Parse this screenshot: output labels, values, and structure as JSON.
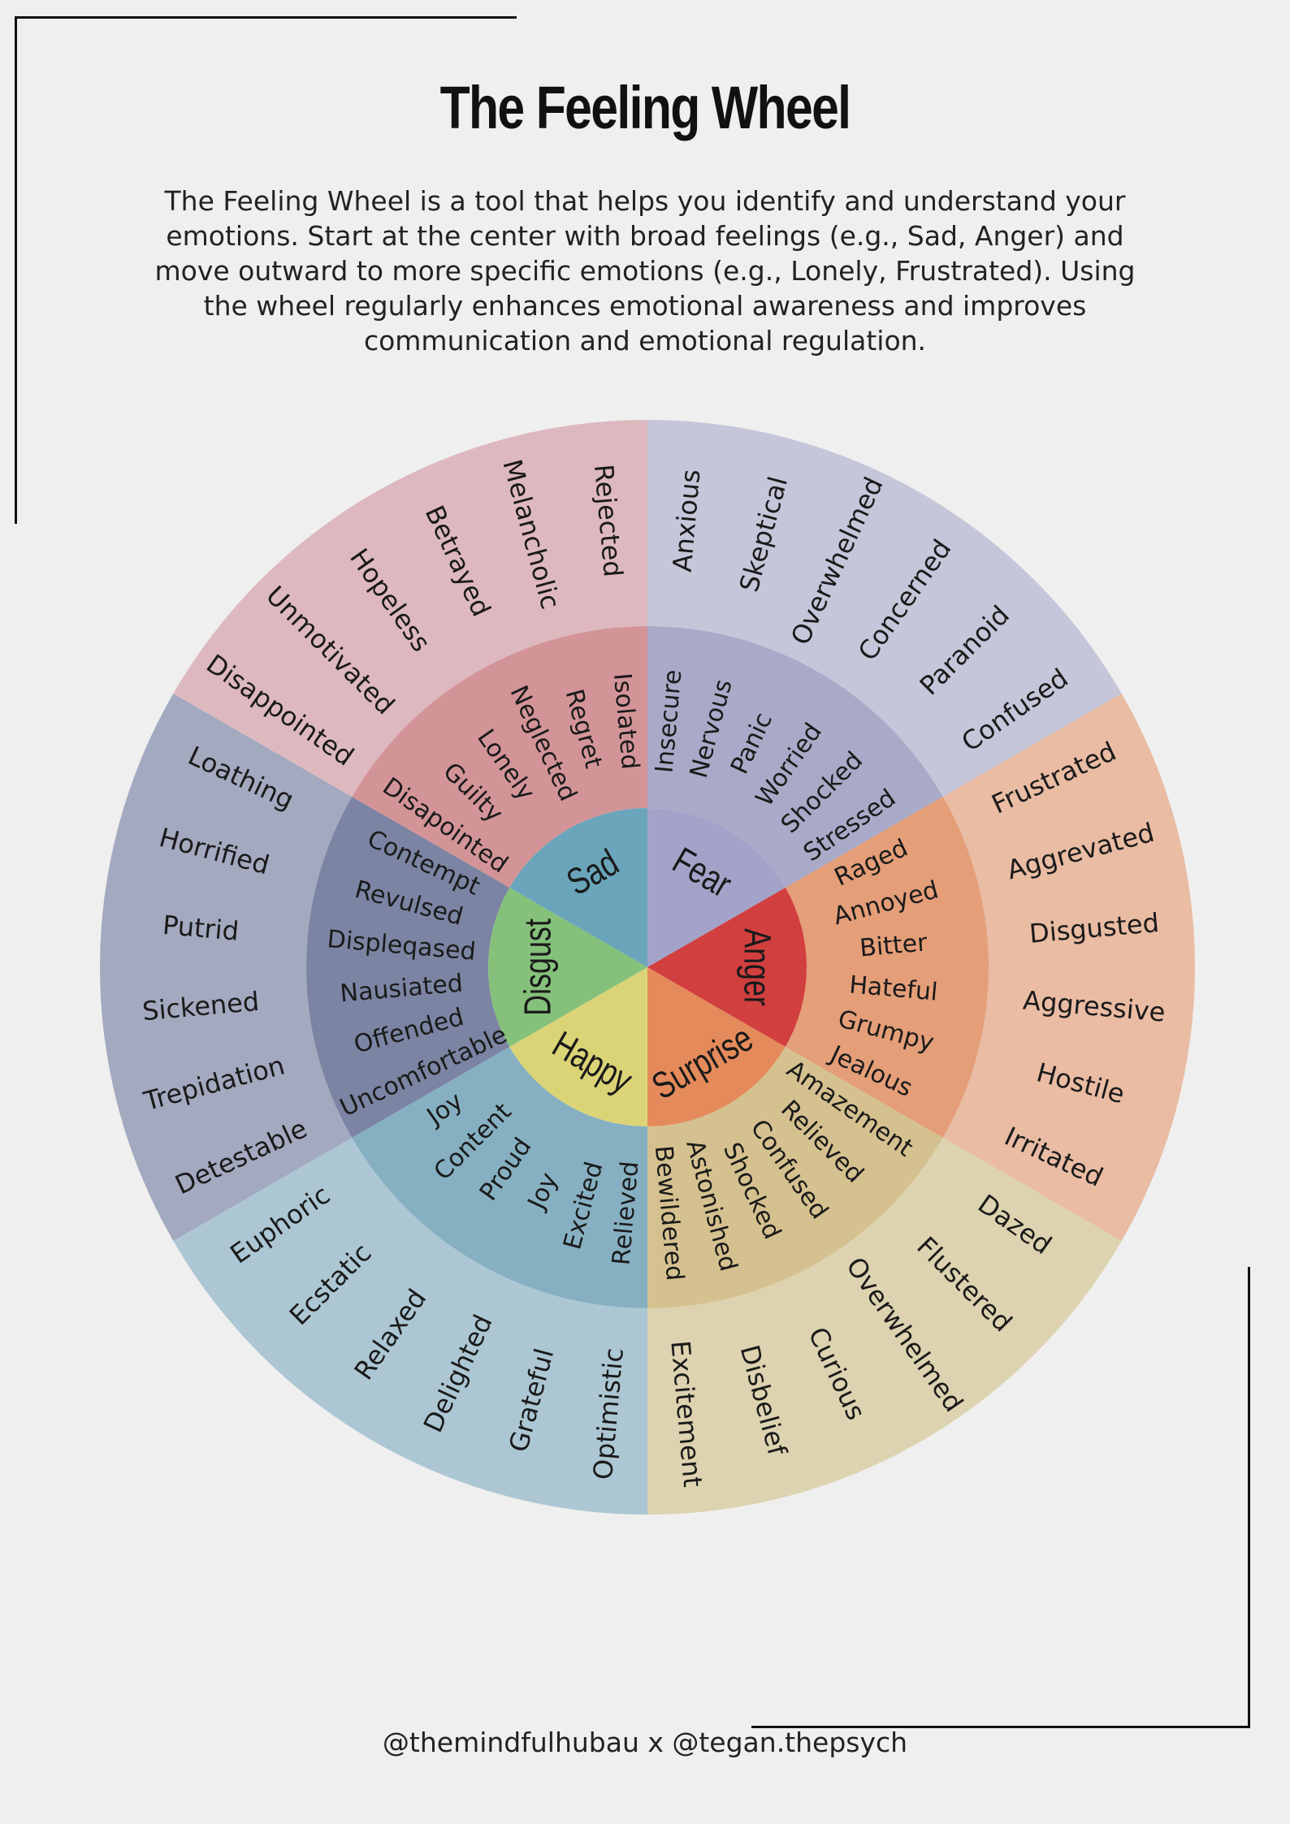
{
  "title": "The Feeling Wheel",
  "intro": "The Feeling Wheel is a tool that helps you identify and understand your emotions. Start at the center with broad feelings (e.g., Sad, Anger) and move outward to more specific emotions (e.g., Lonely, Frustrated). Using the wheel regularly enhances emotional awareness and improves communication and emotional regulation.",
  "credit": "@themindfulhubau x @tegan.thepsych",
  "wheel": {
    "emotions": [
      {
        "core": "Fear",
        "colors": {
          "core": "#a3a3c9",
          "middle": "#a9a9c8",
          "outer": "#c5c6d9"
        },
        "middle": [
          "Insecure",
          "Nervous",
          "Panic",
          "Worried",
          "Shocked",
          "Stressed"
        ],
        "outer": [
          "Anxious",
          "Skeptical",
          "Overwhelmed",
          "Concerned",
          "Paranoid",
          "Confused"
        ]
      },
      {
        "core": "Anger",
        "colors": {
          "core": "#d13f3f",
          "middle": "#e49e78",
          "outer": "#e9bca3"
        },
        "middle": [
          "Raged",
          "Annoyed",
          "Bitter",
          "Hateful",
          "Grumpy",
          "Jealous"
        ],
        "outer": [
          "Frustrated",
          "Aggrevated",
          "Disgusted",
          "Aggressive",
          "Hostile",
          "Irritated"
        ]
      },
      {
        "core": "Surprise",
        "colors": {
          "core": "#e58b5b",
          "middle": "#d5c18f",
          "outer": "#ddd3b0"
        },
        "middle": [
          "Amazement",
          "Relieved",
          "Confused",
          "Shocked",
          "Astonished",
          "Bewildered"
        ],
        "outer": [
          "Dazed",
          "Flustered",
          "Overwhelmed",
          "Curious",
          "Disbelief",
          "Excitement"
        ]
      },
      {
        "core": "Happy",
        "colors": {
          "core": "#dbd476",
          "middle": "#86b0c2",
          "outer": "#acc7d3"
        },
        "middle": [
          "Relieved",
          "Excited",
          "Joy",
          "Proud",
          "Content",
          "Joy"
        ],
        "outer": [
          "Optimistic",
          "Grateful",
          "Delighted",
          "Relaxed",
          "Ecstatic",
          "Euphoric"
        ]
      },
      {
        "core": "Disgust",
        "colors": {
          "core": "#85c17a",
          "middle": "#7b84a2",
          "outer": "#a3a9bf"
        },
        "middle": [
          "Uncomfortable",
          "Offended",
          "Nausiated",
          "Displeqased",
          "Revulsed",
          "Contempt"
        ],
        "outer": [
          "Detestable",
          "Trepidation",
          "Sickened",
          "Putrid",
          "Horrified",
          "Loathing"
        ]
      },
      {
        "core": "Sad",
        "colors": {
          "core": "#6aa5bb",
          "middle": "#d39498",
          "outer": "#ddb9bf"
        },
        "middle": [
          "Disapointed",
          "Guilty",
          "Lonely",
          "Neglected",
          "Regret",
          "Isolated"
        ],
        "outer": [
          "Disappointed",
          "Unmotivated",
          "Hopeless",
          "Betrayed",
          "Melancholic",
          "Rejected"
        ]
      }
    ]
  }
}
